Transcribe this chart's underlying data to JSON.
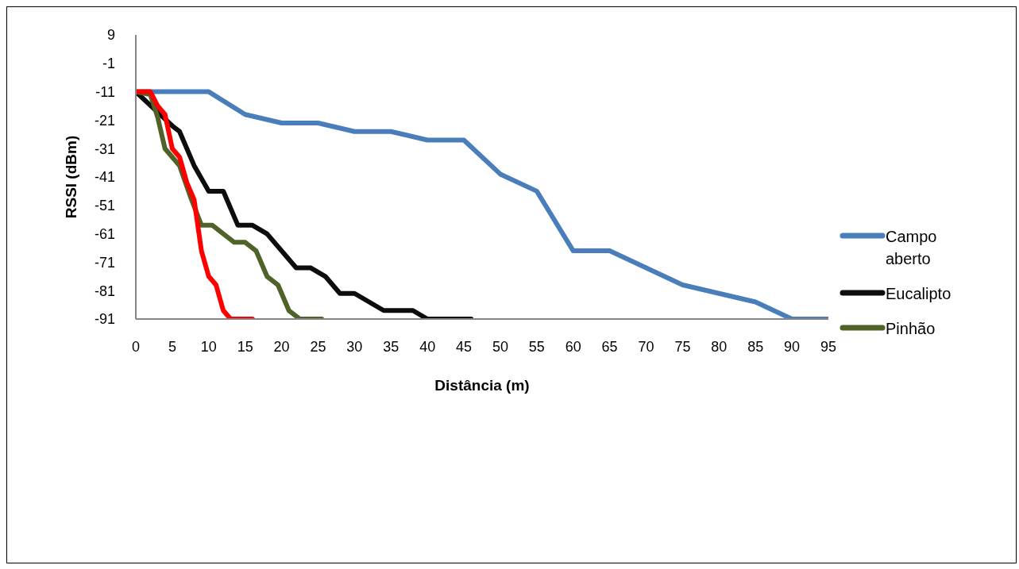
{
  "chart_data": {
    "type": "line",
    "xlabel": "Distância (m)",
    "ylabel": "RSSI (dBm)",
    "xlim": [
      0,
      95
    ],
    "xticks": [
      0,
      5,
      10,
      15,
      20,
      25,
      30,
      35,
      40,
      45,
      50,
      55,
      60,
      65,
      70,
      75,
      80,
      85,
      90,
      95
    ],
    "ylim": [
      -91,
      9
    ],
    "yticks": [
      9,
      -1,
      -11,
      -21,
      -31,
      -41,
      -51,
      -61,
      -71,
      -81,
      -91
    ],
    "grid": false,
    "legend": "right",
    "marker": "none",
    "line_style": "solid",
    "series": [
      {
        "name": "Campo aberto",
        "color": "#4a7ebb",
        "x": [
          0,
          5,
          10,
          15,
          20,
          25,
          30,
          35,
          40,
          45,
          50,
          55,
          60,
          65,
          70,
          75,
          80,
          85,
          90,
          95
        ],
        "values": [
          -11,
          -11,
          -11,
          -19,
          -22,
          -22,
          -25,
          -25,
          -28,
          -28,
          -40,
          -46,
          -67,
          -67,
          -73,
          -79,
          -82,
          -85,
          -91,
          -91
        ]
      },
      {
        "name": "Eucalipto",
        "color": "#0d0d0d",
        "x": [
          0,
          5,
          6,
          8,
          10,
          12,
          14,
          16,
          18,
          22,
          24,
          26,
          28,
          30,
          34,
          38,
          40,
          46
        ],
        "values": [
          -11,
          -23,
          -25,
          -37,
          -46,
          -46,
          -58,
          -58,
          -61,
          -73,
          -73,
          -76,
          -82,
          -82,
          -88,
          -88,
          -91,
          -91
        ]
      },
      {
        "name": "Pinhão",
        "color": "#4f6228",
        "x": [
          0,
          2,
          3,
          4,
          6,
          7.5,
          9,
          10.5,
          13.5,
          15,
          16.5,
          18,
          19.5,
          21,
          22.5,
          25.5
        ],
        "values": [
          -11,
          -12,
          -20,
          -31,
          -37,
          -48,
          -58,
          -58,
          -64,
          -64,
          -67,
          -76,
          -79,
          -88,
          -91,
          -91
        ]
      },
      {
        "color": "#ff0000",
        "x": [
          0,
          2,
          3,
          4,
          5,
          6,
          7,
          8,
          9,
          10,
          11,
          12,
          13,
          16
        ],
        "values": [
          -11,
          -11,
          -16,
          -19,
          -31,
          -34,
          -43,
          -49,
          -67,
          -76,
          -79,
          -88,
          -91,
          -91
        ]
      }
    ]
  }
}
